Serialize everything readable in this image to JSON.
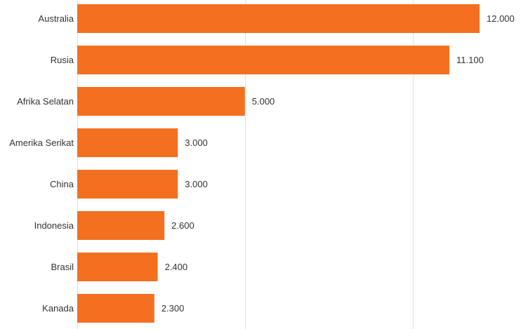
{
  "chart_data": {
    "type": "bar",
    "orientation": "horizontal",
    "categories": [
      "Australia",
      "Rusia",
      "Afrika Selatan",
      "Amerika Serikat",
      "China",
      "Indonesia",
      "Brasil",
      "Kanada"
    ],
    "values": [
      12000,
      11100,
      5000,
      3000,
      3000,
      2600,
      2400,
      2300
    ],
    "value_labels": [
      "12.000",
      "11.100",
      "5.000",
      "3.000",
      "3.000",
      "2.600",
      "2.400",
      "2.300"
    ],
    "xlim": [
      0,
      15000
    ],
    "gridlines_x": [
      0,
      5000,
      10000,
      15000
    ],
    "grid": true,
    "bar_color": "#f37021",
    "grid_color": "#e0e0e0",
    "text_color": "#333333",
    "title": "",
    "xlabel": "",
    "ylabel": ""
  }
}
